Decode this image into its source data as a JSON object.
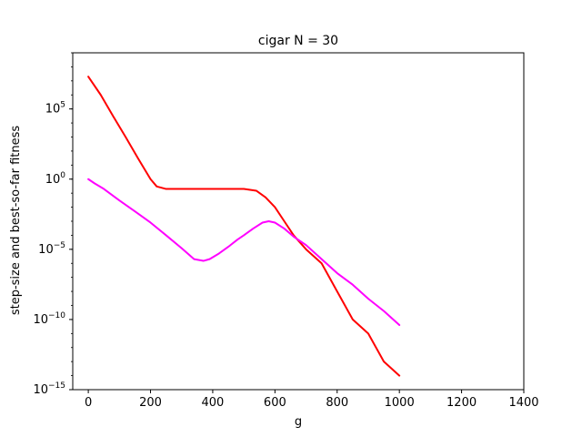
{
  "chart_data": {
    "type": "line",
    "title": "cigar N = 30",
    "xlabel": "g",
    "ylabel": "step-size and best-so-far fitness",
    "x_scale": "linear",
    "y_scale": "log",
    "xlim": [
      -50,
      1400
    ],
    "ylim": [
      1e-15,
      1000000000.0
    ],
    "x_ticks": [
      0,
      200,
      400,
      600,
      800,
      1000,
      1200,
      1400
    ],
    "x_tick_labels": [
      "0",
      "200",
      "400",
      "600",
      "800",
      "1000",
      "1200",
      "1400"
    ],
    "y_ticks": [
      1e-15,
      1e-10,
      1e-05,
      1,
      100000.0
    ],
    "y_tick_labels": [
      {
        "base": "10",
        "exp": "−15"
      },
      {
        "base": "10",
        "exp": "−10"
      },
      {
        "base": "10",
        "exp": "−5"
      },
      {
        "base": "10",
        "exp": "0"
      },
      {
        "base": "10",
        "exp": "5"
      }
    ],
    "grid": false,
    "series": [
      {
        "color": "#ff0000",
        "x": [
          0,
          40,
          80,
          120,
          160,
          200,
          220,
          250,
          300,
          400,
          500,
          540,
          570,
          600,
          630,
          660,
          700,
          750,
          800,
          850,
          900,
          950,
          1000
        ],
        "y": [
          20000000.0,
          1000000.0,
          30000.0,
          1000.0,
          30,
          1.0,
          0.3,
          0.2,
          0.2,
          0.2,
          0.2,
          0.15,
          0.05,
          0.01,
          0.001,
          0.0001,
          1e-05,
          1e-06,
          1e-08,
          1e-10,
          1e-11,
          1e-13,
          1e-14
        ]
      },
      {
        "color": "#ff00ff",
        "x": [
          0,
          20,
          50,
          100,
          150,
          200,
          250,
          300,
          340,
          370,
          390,
          420,
          450,
          480,
          500,
          530,
          560,
          580,
          600,
          630,
          660,
          700,
          750,
          800,
          850,
          900,
          950,
          1000
        ],
        "y": [
          1.0,
          0.5,
          0.2,
          0.03,
          0.005,
          0.0008,
          0.0001,
          1.2e-05,
          2e-06,
          1.5e-06,
          2e-06,
          5e-06,
          1.5e-05,
          5e-05,
          0.0001,
          0.0003,
          0.0008,
          0.001,
          0.0008,
          0.0003,
          8e-05,
          2e-05,
          2e-06,
          2e-07,
          3e-08,
          3e-09,
          4e-10,
          4e-11
        ]
      }
    ]
  }
}
